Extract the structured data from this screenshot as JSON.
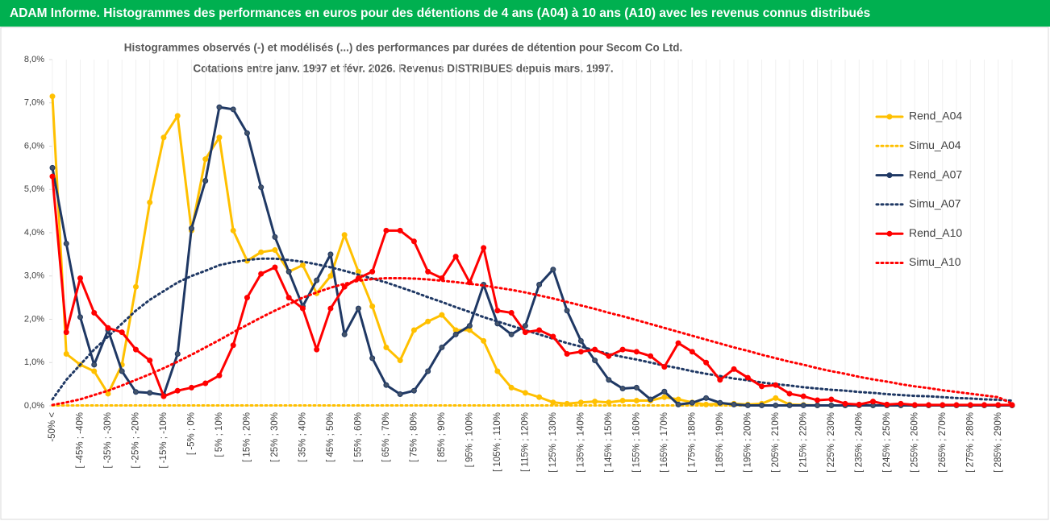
{
  "chart_data": {
    "type": "line",
    "title": "ADAM Informe. Histogrammes des performances en euros pour des détentions de 4 ans (A04) à 10 ans (A10) avec les revenus connus distribués",
    "subtitle": [
      "Histogrammes observés (-) et modélisés (...) des performances par durées de détention pour Secom Co Ltd.",
      "Cotations entre janv. 1997 et févr. 2026. Revenus DISTRIBUES depuis mars. 1997."
    ],
    "categories": [
      "-50% <",
      null,
      "[ -45% ; -40%",
      null,
      "[ -35% ; -30%",
      null,
      "[ -25% ; -20%",
      null,
      "[ -15% ; -10%",
      null,
      "[ -5% ; 0%",
      null,
      "[ 5% ; 10%",
      null,
      "[ 15% ; 20%",
      null,
      "[ 25% ; 30%",
      null,
      "[ 35% ; 40%",
      null,
      "[ 45% ; 50%",
      null,
      "[ 55% ; 60%",
      null,
      "[ 65% ; 70%",
      null,
      "[ 75% ; 80%",
      null,
      "[ 85% ; 90%",
      null,
      "[ 95% ; 100%",
      null,
      "[ 105% ; 110%",
      null,
      "[ 115% ; 120%",
      null,
      "[ 125% ; 130%",
      null,
      "[ 135% ; 140%",
      null,
      "[ 145% ; 150%",
      null,
      "[ 155% ; 160%",
      null,
      "[ 165% ; 170%",
      null,
      "[ 175% ; 180%",
      null,
      "[ 185% ; 190%",
      null,
      "[ 195% ; 200%",
      null,
      "[ 205% ; 210%",
      null,
      "[ 215% ; 220%",
      null,
      "[ 225% ; 230%",
      null,
      "[ 235% ; 240%",
      null,
      "[ 245% ; 250%",
      null,
      "[ 255% ; 260%",
      null,
      "[ 265% ; 270%",
      null,
      "[ 275% ; 280%",
      null,
      "[ 285% ; 290%",
      null
    ],
    "series": [
      {
        "name": "Rend_A04",
        "color": "#ffc000",
        "line_style": "solid",
        "markers": true,
        "values": [
          7.15,
          1.2,
          0.95,
          0.8,
          0.28,
          0.95,
          2.75,
          4.7,
          6.2,
          6.7,
          4.05,
          5.7,
          6.2,
          4.05,
          3.35,
          3.55,
          3.6,
          3.1,
          3.25,
          2.6,
          3.0,
          3.95,
          3.1,
          2.3,
          1.35,
          1.05,
          1.75,
          1.95,
          2.1,
          1.75,
          1.75,
          1.5,
          0.8,
          0.42,
          0.3,
          0.2,
          0.08,
          0.05,
          0.08,
          0.1,
          0.08,
          0.12,
          0.12,
          0.12,
          0.2,
          0.15,
          0.08,
          0.03,
          0.05,
          0.05,
          0.03,
          0.05,
          0.18,
          0.03,
          0.02,
          0.01,
          0.01,
          0.01,
          0.01,
          0.01,
          0.01,
          0.01,
          0.01,
          0.01,
          0.01,
          0.01,
          0.01,
          0.01,
          0.01,
          0.01
        ]
      },
      {
        "name": "Simu_A04",
        "color": "#ffc000",
        "line_style": "dotted",
        "markers": false,
        "values": [
          0.01,
          0.01,
          0.01,
          0.01,
          0.01,
          0.01,
          0.01,
          0.01,
          0.01,
          0.01,
          0.01,
          0.01,
          0.01,
          0.01,
          0.01,
          0.01,
          0.01,
          0.01,
          0.01,
          0.01,
          0.01,
          0.01,
          0.01,
          0.01,
          0.01,
          0.01,
          0.01,
          0.01,
          0.01,
          0.01,
          0.01,
          0.01,
          0.01,
          0.01,
          0.01,
          0.01,
          0.01,
          0.01,
          0.01,
          0.01,
          0.01,
          0.01,
          0.01,
          0.01,
          0.01,
          0.01,
          0.01,
          0.01,
          0.01,
          0.01,
          0.01,
          0.01,
          0.01,
          0.01,
          0.01,
          0.01,
          0.01,
          0.01,
          0.01,
          0.01,
          0.01,
          0.01,
          0.01,
          0.01,
          0.01,
          0.01,
          0.01,
          0.01,
          0.01,
          0.01
        ]
      },
      {
        "name": "Rend_A07",
        "color": "#1f3864",
        "line_style": "solid",
        "markers": true,
        "values": [
          5.5,
          3.75,
          2.05,
          0.95,
          1.75,
          0.8,
          0.32,
          0.3,
          0.25,
          1.2,
          4.1,
          5.2,
          6.9,
          6.85,
          6.3,
          5.05,
          3.9,
          3.1,
          2.3,
          2.9,
          3.5,
          1.65,
          2.25,
          1.1,
          0.48,
          0.27,
          0.35,
          0.8,
          1.35,
          1.65,
          1.85,
          2.8,
          1.9,
          1.65,
          1.85,
          2.8,
          3.15,
          2.2,
          1.5,
          1.05,
          0.6,
          0.4,
          0.42,
          0.15,
          0.33,
          0.03,
          0.07,
          0.18,
          0.07,
          0.03,
          0.01,
          0.01,
          0.01,
          0.01,
          0.01,
          0.01,
          0.01,
          0.01,
          0.01,
          0.01,
          0.01,
          0.01,
          0.01,
          0.01,
          0.01,
          0.01,
          0.01,
          0.01,
          0.01,
          0.01
        ]
      },
      {
        "name": "Simu_A07",
        "color": "#1f3864",
        "line_style": "dotted",
        "markers": false,
        "values": [
          0.15,
          0.6,
          0.95,
          1.3,
          1.6,
          1.9,
          2.2,
          2.45,
          2.65,
          2.85,
          3.0,
          3.12,
          3.25,
          3.32,
          3.37,
          3.4,
          3.4,
          3.37,
          3.33,
          3.27,
          3.2,
          3.12,
          3.03,
          2.94,
          2.85,
          2.74,
          2.63,
          2.51,
          2.4,
          2.28,
          2.17,
          2.05,
          1.95,
          1.85,
          1.75,
          1.65,
          1.55,
          1.45,
          1.37,
          1.28,
          1.2,
          1.13,
          1.07,
          1.0,
          0.93,
          0.87,
          0.8,
          0.74,
          0.69,
          0.63,
          0.59,
          0.54,
          0.5,
          0.47,
          0.43,
          0.4,
          0.37,
          0.35,
          0.32,
          0.3,
          0.27,
          0.25,
          0.23,
          0.22,
          0.2,
          0.18,
          0.17,
          0.15,
          0.14,
          0.12
        ]
      },
      {
        "name": "Rend_A10",
        "color": "#ff0000",
        "line_style": "solid",
        "markers": true,
        "values": [
          5.3,
          1.7,
          2.95,
          2.15,
          1.8,
          1.7,
          1.3,
          1.05,
          0.22,
          0.35,
          0.42,
          0.52,
          0.7,
          1.4,
          2.5,
          3.05,
          3.2,
          2.5,
          2.25,
          1.3,
          2.25,
          2.75,
          2.95,
          3.1,
          4.05,
          4.05,
          3.8,
          3.1,
          2.95,
          3.45,
          2.85,
          3.65,
          2.2,
          2.15,
          1.7,
          1.75,
          1.6,
          1.2,
          1.25,
          1.3,
          1.15,
          1.3,
          1.25,
          1.15,
          0.9,
          1.45,
          1.25,
          1.0,
          0.6,
          0.85,
          0.65,
          0.45,
          0.48,
          0.28,
          0.22,
          0.13,
          0.15,
          0.05,
          0.03,
          0.1,
          0.03,
          0.05,
          0.02,
          0.02,
          0.02,
          0.02,
          0.02,
          0.02,
          0.02,
          0.02
        ]
      },
      {
        "name": "Simu_A10",
        "color": "#ff0000",
        "line_style": "dotted",
        "markers": false,
        "values": [
          0.02,
          0.08,
          0.15,
          0.25,
          0.35,
          0.47,
          0.6,
          0.73,
          0.87,
          1.02,
          1.18,
          1.35,
          1.52,
          1.7,
          1.87,
          2.04,
          2.2,
          2.35,
          2.5,
          2.62,
          2.73,
          2.82,
          2.89,
          2.93,
          2.95,
          2.95,
          2.94,
          2.92,
          2.89,
          2.86,
          2.82,
          2.78,
          2.73,
          2.68,
          2.62,
          2.55,
          2.48,
          2.4,
          2.32,
          2.24,
          2.15,
          2.07,
          1.98,
          1.89,
          1.8,
          1.71,
          1.62,
          1.53,
          1.44,
          1.35,
          1.27,
          1.18,
          1.1,
          1.02,
          0.95,
          0.87,
          0.8,
          0.74,
          0.67,
          0.61,
          0.56,
          0.5,
          0.45,
          0.41,
          0.36,
          0.32,
          0.28,
          0.24,
          0.2,
          0.05
        ]
      }
    ],
    "ylim": [
      0,
      8
    ],
    "yticks": [
      {
        "value": 0,
        "label": "0,0%"
      },
      {
        "value": 1,
        "label": "1,0%"
      },
      {
        "value": 2,
        "label": "2,0%"
      },
      {
        "value": 3,
        "label": "3,0%"
      },
      {
        "value": 4,
        "label": "4,0%"
      },
      {
        "value": 5,
        "label": "5,0%"
      },
      {
        "value": 6,
        "label": "6,0%"
      },
      {
        "value": 7,
        "label": "7,0%"
      },
      {
        "value": 8,
        "label": "8,0%"
      }
    ],
    "grid": false,
    "legend": "right",
    "title_background": "#00b050"
  }
}
